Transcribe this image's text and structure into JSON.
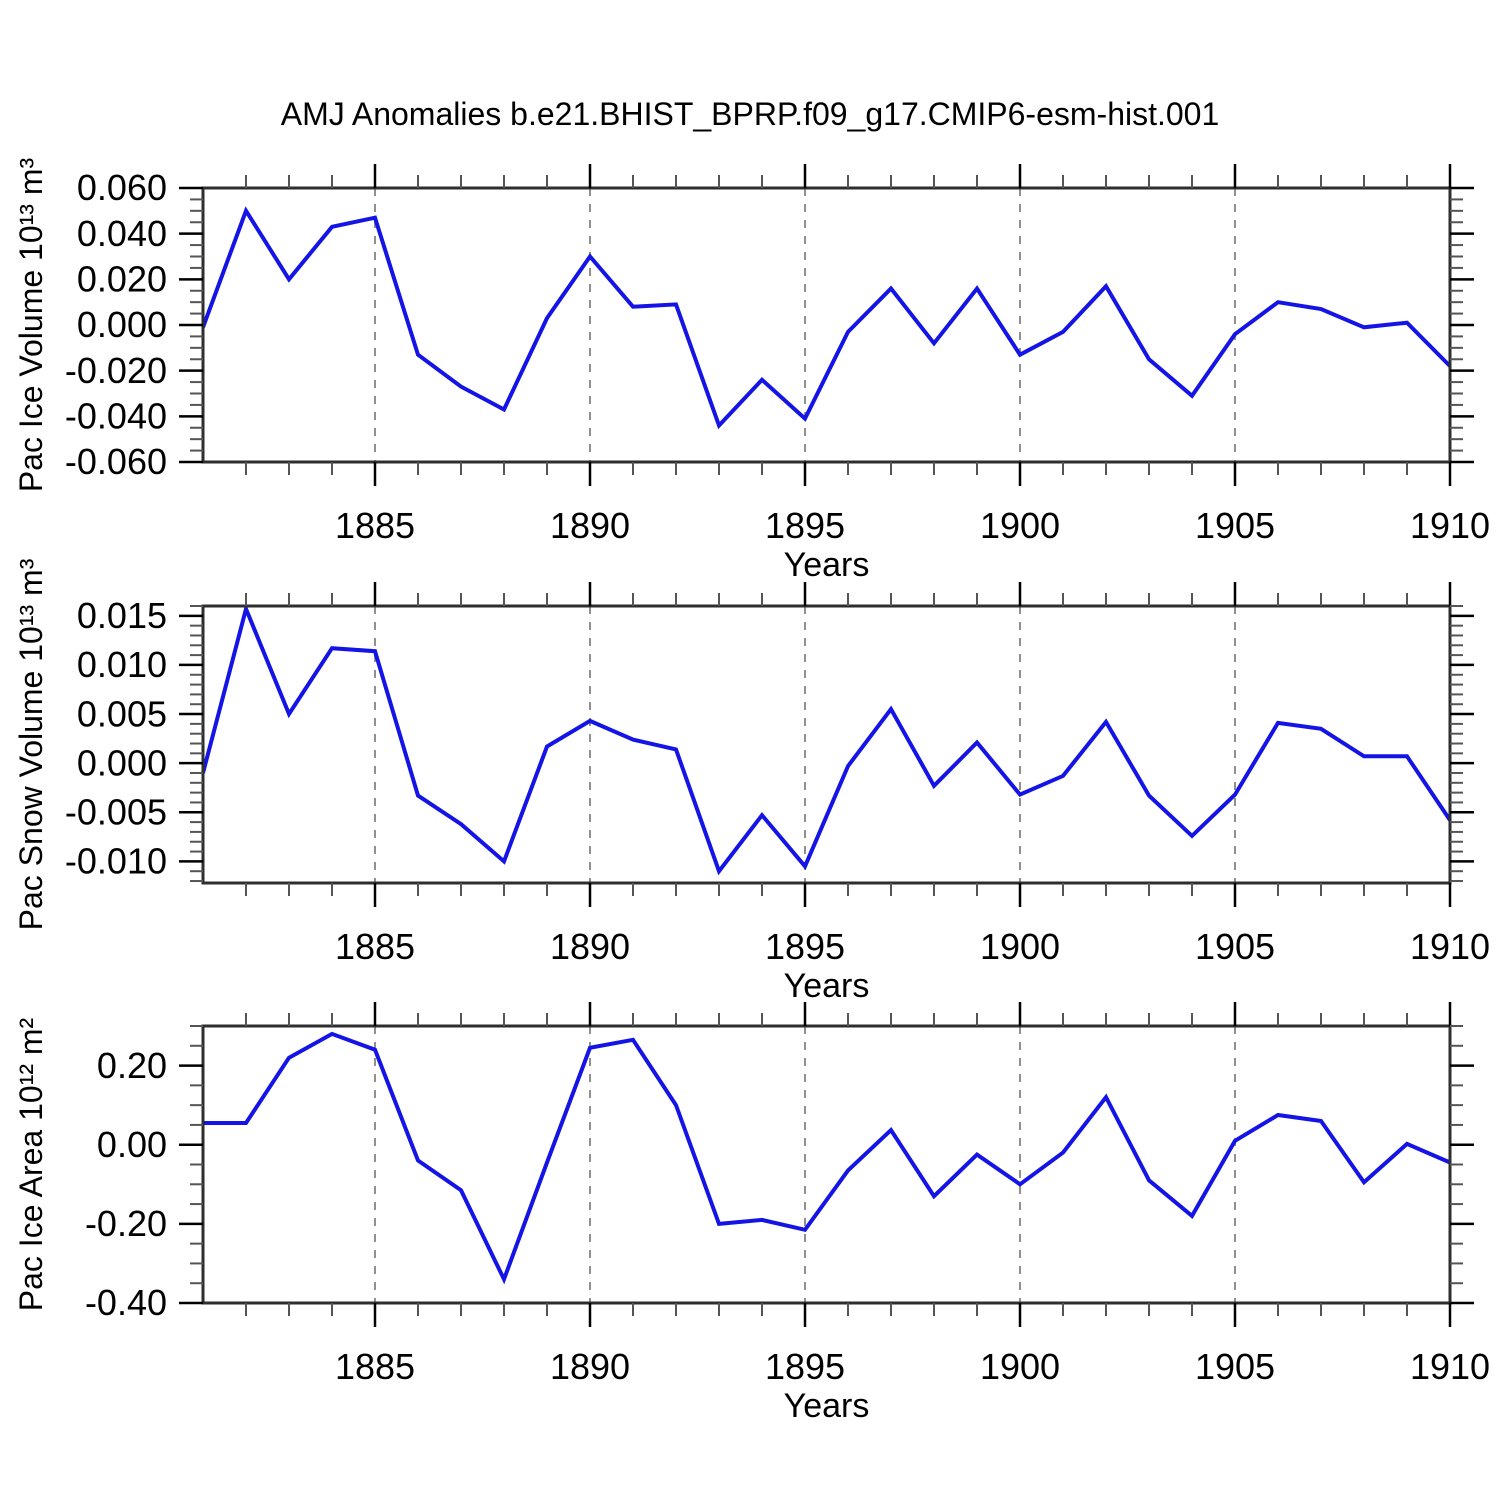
{
  "title": "AMJ Anomalies b.e21.BHIST_BPRP.f09_g17.CMIP6-esm-hist.001",
  "style": {
    "line_color": "#1414e6",
    "grid_color": "#909090",
    "frame_color": "#2e2e2e",
    "major_tick_color": "#000000",
    "minor_tick_color": "#555555",
    "text_color": "#000000",
    "background": "#ffffff"
  },
  "chart_data": [
    {
      "type": "line",
      "panel": "pac-ice-volume",
      "title": "",
      "ylabel": "Pac Ice Volume 10^13 m^3",
      "ylabel_display": "Pac Ice Volume 10¹³ m³",
      "xlabel": "Years",
      "x": [
        1881,
        1882,
        1883,
        1884,
        1885,
        1886,
        1887,
        1888,
        1889,
        1890,
        1891,
        1892,
        1893,
        1894,
        1895,
        1896,
        1897,
        1898,
        1899,
        1900,
        1901,
        1902,
        1903,
        1904,
        1905,
        1906,
        1907,
        1908,
        1909,
        1910
      ],
      "values": [
        -0.001,
        0.05,
        0.02,
        0.043,
        0.047,
        -0.013,
        -0.027,
        -0.037,
        0.003,
        0.03,
        0.008,
        0.009,
        -0.044,
        -0.024,
        -0.041,
        -0.003,
        0.016,
        -0.008,
        0.016,
        -0.013,
        -0.003,
        0.017,
        -0.015,
        -0.031,
        -0.004,
        0.01,
        0.007,
        -0.001,
        0.001,
        -0.018
      ],
      "xlim": [
        1881,
        1910
      ],
      "ylim": [
        -0.06,
        0.06
      ],
      "xtick_values": [
        1885,
        1890,
        1895,
        1900,
        1905,
        1910
      ],
      "xtick_labels": [
        "1885",
        "1890",
        "1895",
        "1900",
        "1905",
        "1910"
      ],
      "xminor_step": 1,
      "ytick_values": [
        0.06,
        0.04,
        0.02,
        0.0,
        -0.02,
        -0.04,
        -0.06
      ],
      "ytick_labels": [
        "0.060",
        "0.040",
        "0.020",
        "0.000",
        "-0.020",
        "-0.040",
        "-0.060"
      ],
      "yminor_step": 0.005,
      "grid_x": [
        1885,
        1890,
        1895,
        1900,
        1905
      ],
      "grid_on": "x-dashed",
      "legend": null
    },
    {
      "type": "line",
      "panel": "pac-snow-volume",
      "title": "",
      "ylabel": "Pac Snow Volume 10^13 m^3",
      "ylabel_display": "Pac Snow Volume 10¹³ m³",
      "xlabel": "Years",
      "x": [
        1881,
        1882,
        1883,
        1884,
        1885,
        1886,
        1887,
        1888,
        1889,
        1890,
        1891,
        1892,
        1893,
        1894,
        1895,
        1896,
        1897,
        1898,
        1899,
        1900,
        1901,
        1902,
        1903,
        1904,
        1905,
        1906,
        1907,
        1908,
        1909,
        1910
      ],
      "values": [
        -0.001,
        0.0157,
        0.005,
        0.0117,
        0.0114,
        -0.0033,
        -0.0062,
        -0.01,
        0.0017,
        0.0043,
        0.0024,
        0.0014,
        -0.011,
        -0.0053,
        -0.0105,
        -0.0003,
        0.0055,
        -0.0023,
        0.0021,
        -0.0032,
        -0.0013,
        0.0042,
        -0.0033,
        -0.0074,
        -0.0032,
        0.0041,
        0.0035,
        0.0007,
        0.0007,
        -0.0058
      ],
      "xlim": [
        1881,
        1910
      ],
      "ylim": [
        -0.0122,
        0.016
      ],
      "xtick_values": [
        1885,
        1890,
        1895,
        1900,
        1905,
        1910
      ],
      "xtick_labels": [
        "1885",
        "1890",
        "1895",
        "1900",
        "1905",
        "1910"
      ],
      "xminor_step": 1,
      "ytick_values": [
        0.015,
        0.01,
        0.005,
        0.0,
        -0.005,
        -0.01
      ],
      "ytick_labels": [
        "0.015",
        "0.010",
        "0.005",
        "0.000",
        "-0.005",
        "-0.010"
      ],
      "yminor_step": 0.001,
      "grid_x": [
        1885,
        1890,
        1895,
        1900,
        1905
      ],
      "grid_on": "x-dashed",
      "legend": null
    },
    {
      "type": "line",
      "panel": "pac-ice-area",
      "title": "",
      "ylabel": "Pac Ice Area 10^12 m^2",
      "ylabel_display": "Pac Ice Area 10¹² m²",
      "xlabel": "Years",
      "x": [
        1881,
        1882,
        1883,
        1884,
        1885,
        1886,
        1887,
        1888,
        1889,
        1890,
        1891,
        1892,
        1893,
        1894,
        1895,
        1896,
        1897,
        1898,
        1899,
        1900,
        1901,
        1902,
        1903,
        1904,
        1905,
        1906,
        1907,
        1908,
        1909,
        1910
      ],
      "values": [
        0.055,
        0.055,
        0.22,
        0.28,
        0.24,
        -0.04,
        -0.115,
        -0.34,
        -0.045,
        0.245,
        0.265,
        0.1,
        -0.2,
        -0.19,
        -0.215,
        -0.065,
        0.037,
        -0.13,
        -0.025,
        -0.1,
        -0.02,
        0.12,
        -0.09,
        -0.18,
        0.01,
        0.075,
        0.06,
        -0.095,
        0.002,
        -0.045
      ],
      "xlim": [
        1881,
        1910
      ],
      "ylim": [
        -0.4,
        0.3
      ],
      "xtick_values": [
        1885,
        1890,
        1895,
        1900,
        1905,
        1910
      ],
      "xtick_labels": [
        "1885",
        "1890",
        "1895",
        "1900",
        "1905",
        "1910"
      ],
      "xminor_step": 1,
      "ytick_values": [
        0.2,
        0.0,
        -0.2,
        -0.4
      ],
      "ytick_labels": [
        "0.20",
        "0.00",
        "-0.20",
        "-0.40"
      ],
      "yminor_step": 0.05,
      "grid_x": [
        1885,
        1890,
        1895,
        1900,
        1905
      ],
      "grid_on": "x-dashed",
      "legend": null
    }
  ]
}
